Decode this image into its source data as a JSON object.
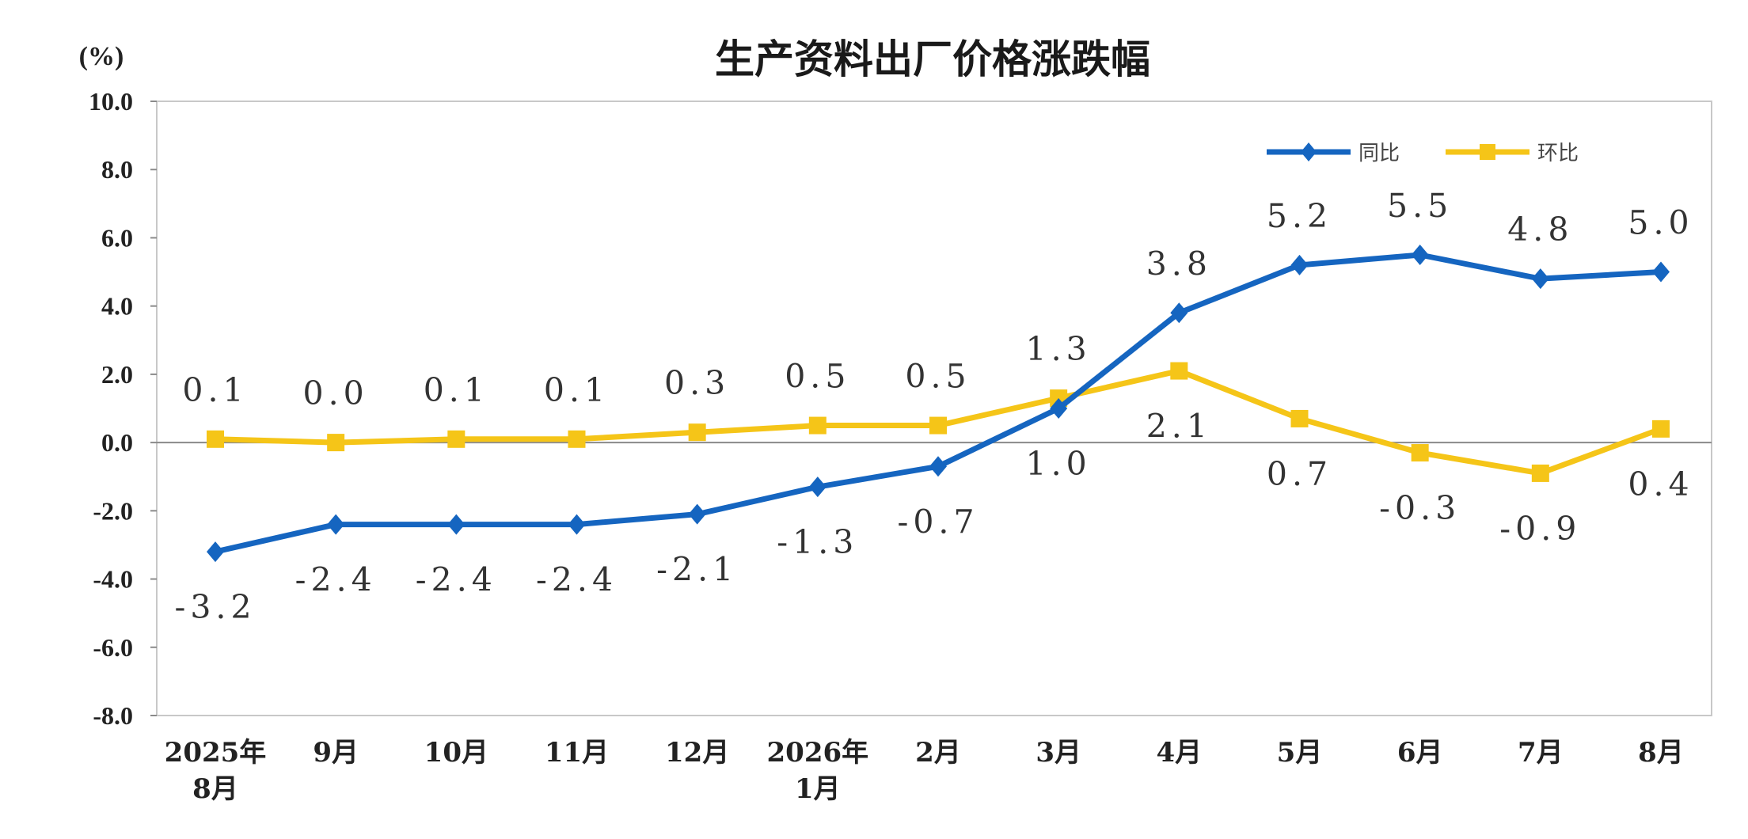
{
  "chart_data": {
    "type": "line",
    "title": "生产资料出厂价格涨跌幅",
    "unit_label": "(%)",
    "ylim": [
      -8.0,
      10.0
    ],
    "yticks": [
      "10.0",
      "8.0",
      "6.0",
      "4.0",
      "2.0",
      "0.0",
      "-2.0",
      "-4.0",
      "-6.0",
      "-8.0"
    ],
    "ytick_values": [
      10,
      8,
      6,
      4,
      2,
      0,
      -2,
      -4,
      -6,
      -8
    ],
    "categories": [
      [
        "2025年",
        "8月"
      ],
      [
        "9月"
      ],
      [
        "10月"
      ],
      [
        "11月"
      ],
      [
        "12月"
      ],
      [
        "2026年",
        "1月"
      ],
      [
        "2月"
      ],
      [
        "3月"
      ],
      [
        "4月"
      ],
      [
        "5月"
      ],
      [
        "6月"
      ],
      [
        "7月"
      ],
      [
        "8月"
      ]
    ],
    "legend_position": "top-right",
    "grid": false,
    "series": [
      {
        "name": "同比",
        "color": "#1565C0",
        "marker": "diamond",
        "values": [
          -3.2,
          -2.4,
          -2.4,
          -2.4,
          -2.1,
          -1.3,
          -0.7,
          1.0,
          3.8,
          5.2,
          5.5,
          4.8,
          5.0
        ],
        "labels": [
          "-3.2",
          "-2.4",
          "-2.4",
          "-2.4",
          "-2.1",
          "-1.3",
          "-0.7",
          "1.0",
          "3.8",
          "5.2",
          "5.5",
          "4.8",
          "5.0"
        ],
        "label_side": [
          "below",
          "below",
          "below",
          "below",
          "below",
          "below",
          "below",
          "below",
          "above",
          "above",
          "above",
          "above",
          "above"
        ]
      },
      {
        "name": "环比",
        "color": "#F5C518",
        "marker": "square",
        "values": [
          0.1,
          0.0,
          0.1,
          0.1,
          0.3,
          0.5,
          0.5,
          1.3,
          2.1,
          0.7,
          -0.3,
          -0.9,
          0.4
        ],
        "labels": [
          "0.1",
          "0.0",
          "0.1",
          "0.1",
          "0.3",
          "0.5",
          "0.5",
          "1.3",
          "2.1",
          "0.7",
          "-0.3",
          "-0.9",
          "0.4"
        ],
        "label_side": [
          "above",
          "above",
          "above",
          "above",
          "above",
          "above",
          "above",
          "above",
          "below",
          "below",
          "below",
          "below",
          "below"
        ]
      }
    ]
  }
}
